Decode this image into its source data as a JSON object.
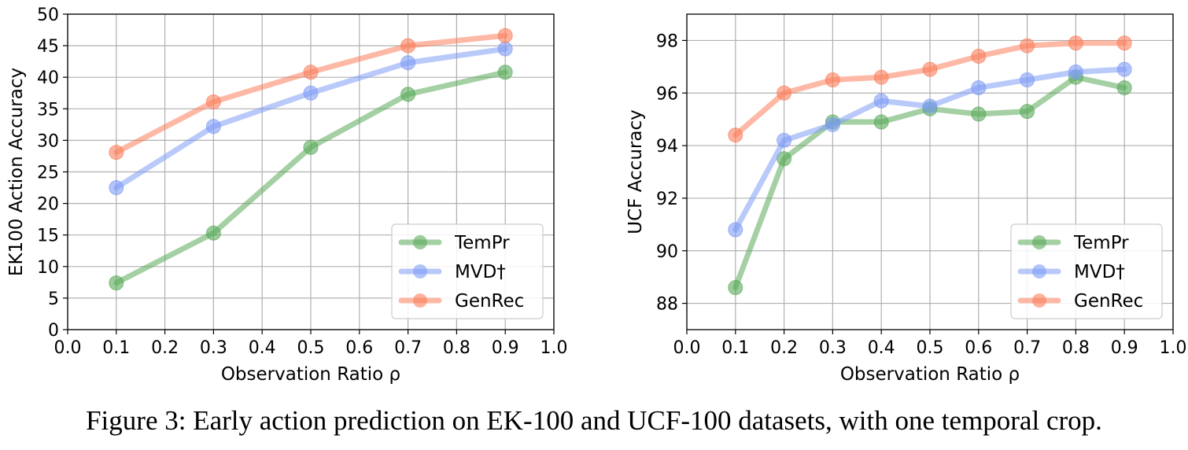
{
  "caption": "Figure 3:  Early action prediction on EK-100 and UCF-100 datasets, with one temporal crop.",
  "chart_data": [
    {
      "type": "line",
      "xlabel": "Observation Ratio ρ",
      "ylabel": "EK100 Action Accuracy",
      "xlim": [
        0.0,
        1.0
      ],
      "ylim": [
        0,
        50
      ],
      "xticks": [
        "0.0",
        "0.1",
        "0.2",
        "0.3",
        "0.4",
        "0.5",
        "0.6",
        "0.7",
        "0.8",
        "0.9",
        "1.0"
      ],
      "yticks": [
        "0",
        "5",
        "10",
        "15",
        "20",
        "25",
        "30",
        "35",
        "40",
        "45",
        "50"
      ],
      "grid": true,
      "legend_position": "lower-right",
      "series": [
        {
          "name": "TemPr",
          "color": "#5aaa5a",
          "x": [
            0.1,
            0.3,
            0.5,
            0.7,
            0.9
          ],
          "y": [
            7.4,
            15.3,
            28.9,
            37.3,
            40.8
          ]
        },
        {
          "name": "MVD†",
          "color": "#7f9cf5",
          "x": [
            0.1,
            0.3,
            0.5,
            0.7,
            0.9
          ],
          "y": [
            22.5,
            32.2,
            37.5,
            42.3,
            44.5
          ]
        },
        {
          "name": "GenRec",
          "color": "#fb7f5c",
          "x": [
            0.1,
            0.3,
            0.5,
            0.7,
            0.9
          ],
          "y": [
            28.1,
            36.1,
            40.8,
            45.0,
            46.6
          ]
        }
      ]
    },
    {
      "type": "line",
      "xlabel": "Observation Ratio ρ",
      "ylabel": "UCF Accuracy",
      "xlim": [
        0.0,
        1.0
      ],
      "ylim": [
        87.0,
        99.0
      ],
      "xticks": [
        "0.0",
        "0.1",
        "0.2",
        "0.3",
        "0.4",
        "0.5",
        "0.6",
        "0.7",
        "0.8",
        "0.9",
        "1.0"
      ],
      "yticks": [
        "88",
        "90",
        "92",
        "94",
        "96",
        "98"
      ],
      "grid": true,
      "legend_position": "lower-right",
      "series": [
        {
          "name": "TemPr",
          "color": "#5aaa5a",
          "x": [
            0.1,
            0.2,
            0.3,
            0.4,
            0.5,
            0.6,
            0.7,
            0.8,
            0.9
          ],
          "y": [
            88.6,
            93.5,
            94.9,
            94.9,
            95.4,
            95.2,
            95.3,
            96.6,
            96.2
          ]
        },
        {
          "name": "MVD†",
          "color": "#7f9cf5",
          "x": [
            0.1,
            0.2,
            0.3,
            0.4,
            0.5,
            0.6,
            0.7,
            0.8,
            0.9
          ],
          "y": [
            90.8,
            94.2,
            94.8,
            95.7,
            95.5,
            96.2,
            96.5,
            96.8,
            96.9
          ]
        },
        {
          "name": "GenRec",
          "color": "#fb7f5c",
          "x": [
            0.1,
            0.2,
            0.3,
            0.4,
            0.5,
            0.6,
            0.7,
            0.8,
            0.9
          ],
          "y": [
            94.4,
            96.0,
            96.5,
            96.6,
            96.9,
            97.4,
            97.8,
            97.9,
            97.9
          ]
        }
      ]
    }
  ]
}
